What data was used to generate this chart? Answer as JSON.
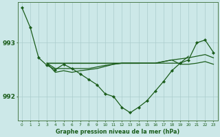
{
  "xlabel": "Graphe pression niveau de la mer (hPa)",
  "background_color": "#cce8e8",
  "grid_color": "#aacccc",
  "line_color": "#1a5c1a",
  "ylim": [
    991.55,
    993.75
  ],
  "yticks": [
    992,
    993
  ],
  "hours": [
    0,
    1,
    2,
    3,
    4,
    5,
    6,
    7,
    8,
    9,
    10,
    11,
    12,
    13,
    14,
    15,
    16,
    17,
    18,
    19,
    20,
    21,
    22,
    23
  ],
  "main_line": [
    993.65,
    993.28,
    992.72,
    992.58,
    992.5,
    992.6,
    992.52,
    992.42,
    992.32,
    992.22,
    992.05,
    992.0,
    991.8,
    991.7,
    991.8,
    991.92,
    992.1,
    992.28,
    992.48,
    992.62,
    992.68,
    993.0,
    993.05,
    992.82
  ],
  "flat_line1": [
    null,
    null,
    null,
    992.62,
    992.62,
    992.62,
    992.62,
    992.62,
    992.62,
    992.62,
    992.62,
    992.62,
    992.62,
    992.62,
    992.62,
    null,
    null,
    null,
    null,
    null,
    null,
    null,
    null,
    null
  ],
  "flat_line2": [
    null,
    null,
    null,
    992.62,
    992.62,
    992.62,
    992.62,
    992.62,
    992.62,
    992.62,
    992.62,
    992.62,
    992.62,
    992.62,
    992.62,
    992.62,
    992.62,
    992.62,
    992.62,
    992.62,
    992.75,
    null,
    null,
    null
  ],
  "flat_line3": [
    null,
    null,
    null,
    992.62,
    992.52,
    992.52,
    992.52,
    992.52,
    992.52,
    992.55,
    992.58,
    992.6,
    992.62,
    992.62,
    992.62,
    992.62,
    992.62,
    992.65,
    992.68,
    992.7,
    992.72,
    992.75,
    992.78,
    992.72
  ],
  "flat_line4": [
    null,
    null,
    null,
    992.62,
    992.45,
    992.48,
    992.45,
    992.48,
    992.5,
    992.52,
    992.56,
    992.6,
    992.62,
    992.62,
    992.62,
    992.62,
    992.62,
    992.65,
    992.68,
    992.6,
    992.6,
    992.62,
    992.65,
    992.6
  ]
}
